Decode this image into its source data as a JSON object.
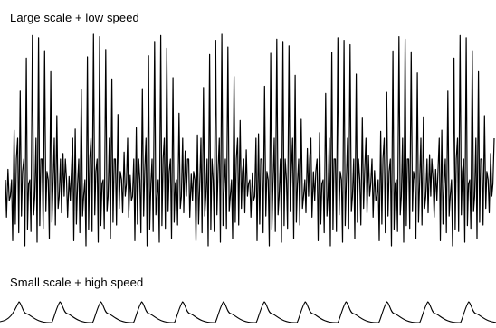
{
  "chart_data": [
    {
      "type": "line",
      "title": "Large scale + low speed",
      "xlabel": "",
      "ylabel": "",
      "grid": false,
      "legend": "none",
      "axes_visible": false,
      "color": "#000000",
      "bursts": 8,
      "spikes_per_burst": 10,
      "spike_height_pattern": [
        0.35,
        0.55,
        0.75,
        0.92,
        1.0,
        1.0,
        0.95,
        0.82,
        0.62,
        0.45
      ],
      "spike_trough_pattern": [
        0.12,
        0.02,
        0.05,
        0.0,
        0.06,
        0.0,
        0.08,
        0.02,
        0.1,
        0.15
      ]
    },
    {
      "type": "line",
      "title": "Small scale + high speed",
      "xlabel": "",
      "ylabel": "",
      "grid": false,
      "legend": "none",
      "axes_visible": false,
      "color": "#000000",
      "bursts": 12,
      "waveform": "peak-then-decay"
    }
  ]
}
